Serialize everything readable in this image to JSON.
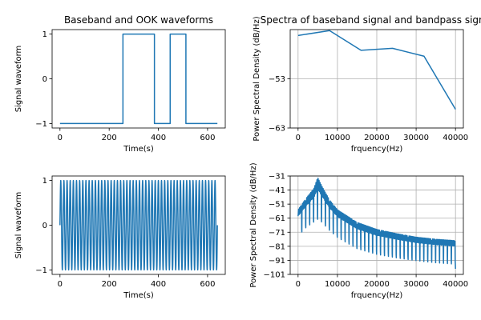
{
  "colors": {
    "series": "#1f77b4",
    "grid": "#b0b0b0"
  },
  "chart_data": [
    {
      "id": "tl",
      "type": "line",
      "title": "Baseband and OOK waveforms",
      "xlabel": "Time(s)",
      "ylabel": "Signal waveform",
      "xlim": [
        -32,
        672
      ],
      "ylim": [
        -1.1,
        1.1
      ],
      "xticks": [
        0,
        200,
        400,
        600
      ],
      "yticks": [
        -1,
        0,
        1
      ],
      "xtick_labels": [
        "0",
        "200",
        "400",
        "600"
      ],
      "ytick_labels": [
        "−1",
        "0",
        "1"
      ],
      "grid": false,
      "series": [
        {
          "x": [
            0,
            256,
            256,
            384,
            384,
            448,
            448,
            512,
            512,
            640
          ],
          "y": [
            -1,
            -1,
            1,
            1,
            -1,
            -1,
            1,
            1,
            -1,
            -1
          ]
        }
      ]
    },
    {
      "id": "tr",
      "type": "line",
      "title": "Spectra of baseband signal and bandpass signal",
      "xlabel": "frquency(Hz)",
      "ylabel": "Power Spectral Density (dB/Hz)",
      "xlim": [
        -2000,
        42000
      ],
      "ylim": [
        -63,
        -43
      ],
      "xticks": [
        0,
        10000,
        20000,
        30000,
        40000
      ],
      "yticks": [
        -63,
        -53
      ],
      "xtick_labels": [
        "0",
        "10000",
        "20000",
        "30000",
        "40000"
      ],
      "ytick_labels": [
        "−63",
        "−53"
      ],
      "grid": true,
      "series": [
        {
          "x": [
            0,
            8000,
            16000,
            24000,
            32000,
            40000
          ],
          "y": [
            -44.2,
            -43.2,
            -47.2,
            -46.8,
            -48.4,
            -59.2
          ]
        }
      ]
    },
    {
      "id": "bl",
      "type": "line",
      "title": "",
      "xlabel": "Time(s)",
      "ylabel": "Signal waveform",
      "xlim": [
        -32,
        672
      ],
      "ylim": [
        -1.1,
        1.1
      ],
      "xticks": [
        0,
        200,
        400,
        600
      ],
      "yticks": [
        -1,
        0,
        1
      ],
      "xtick_labels": [
        "0",
        "200",
        "400",
        "600"
      ],
      "ytick_labels": [
        "−1",
        "0",
        "1"
      ],
      "grid": false,
      "series": [
        {
          "generator": "sine",
          "x_start": 0,
          "x_end": 640,
          "period": 12.8,
          "amplitude": 1
        }
      ]
    },
    {
      "id": "br",
      "type": "line",
      "title": "",
      "xlabel": "frquency(Hz)",
      "ylabel": "Power Spectral Density (dB/Hz)",
      "xlim": [
        -2000,
        42000
      ],
      "ylim": [
        -101,
        -31
      ],
      "xticks": [
        0,
        10000,
        20000,
        30000,
        40000
      ],
      "yticks": [
        -101,
        -91,
        -81,
        -71,
        -61,
        -51,
        -41,
        -31
      ],
      "xtick_labels": [
        "0",
        "10000",
        "20000",
        "30000",
        "40000"
      ],
      "ytick_labels": [
        "−101",
        "−91",
        "−81",
        "−71",
        "−61",
        "−51",
        "−41",
        "−31"
      ],
      "grid": true,
      "series": [
        {
          "envelope_x": [
            0,
            2000,
            4000,
            5000,
            6000,
            8000,
            10000,
            15000,
            20000,
            25000,
            30000,
            35000,
            40000
          ],
          "envelope_upper": [
            -55,
            -47,
            -40,
            -32,
            -38,
            -48,
            -55,
            -64,
            -69,
            -72,
            -74.5,
            -76,
            -77
          ],
          "envelope_lower": [
            -68,
            -62,
            -58,
            -56,
            -58,
            -64,
            -69,
            -77,
            -81,
            -83.5,
            -85.5,
            -87,
            -88
          ],
          "notch_spacing": 1000,
          "notch_depth": 6,
          "end_value": -97
        }
      ]
    }
  ]
}
